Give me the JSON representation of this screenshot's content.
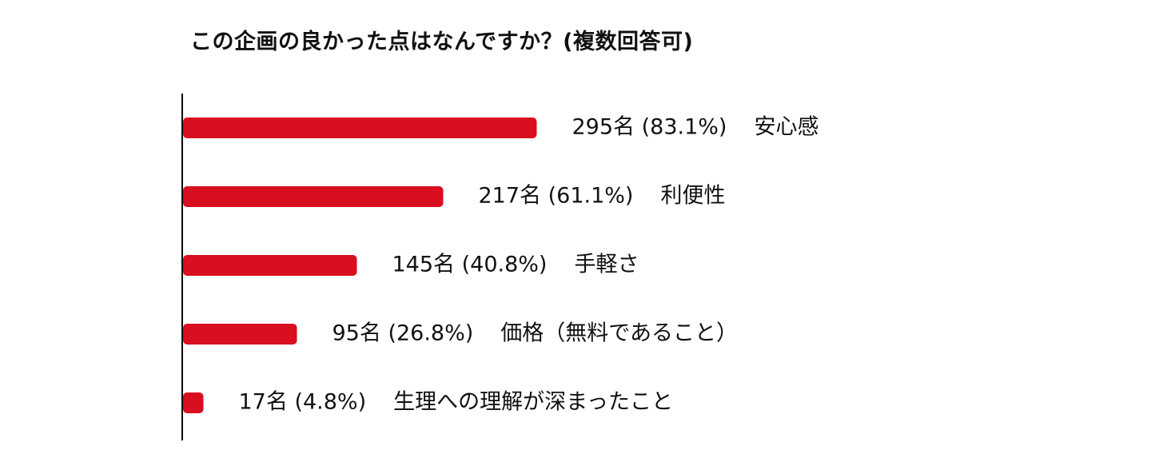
{
  "chart_data": {
    "type": "bar",
    "orientation": "horizontal",
    "title": "この企画の良かった点はなんですか？(複数回答可)",
    "xlabel": "",
    "ylabel": "",
    "unit": "名",
    "xlim": [
      0,
      355
    ],
    "grid": false,
    "bar_color": "#d90e1f",
    "axis_color": "#000000",
    "categories": [
      "安心感",
      "利便性",
      "手軽さ",
      "価格（無料であること）",
      "生理への理解が深まったこと"
    ],
    "values": [
      295,
      217,
      145,
      95,
      17
    ],
    "percentages": [
      "83.1%",
      "61.1%",
      "40.8%",
      "26.8%",
      "4.8%"
    ],
    "data_labels": [
      "295名 (83.1%)",
      "217名 (61.1%)",
      "145名 (40.8%)",
      "95名 (26.8%)",
      "17名 (4.8%)"
    ]
  }
}
